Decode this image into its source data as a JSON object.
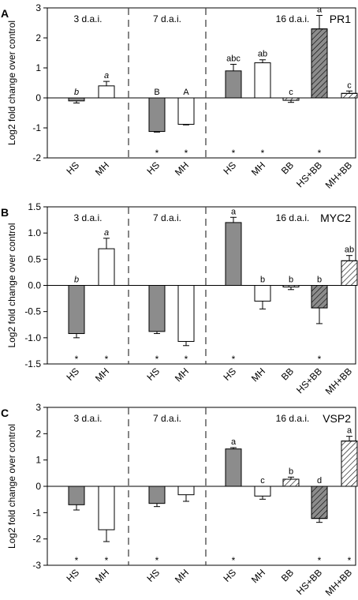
{
  "chart_data": [
    {
      "type": "bar",
      "panel": "A",
      "gene": "PR1",
      "ylabel": "Log2 fold change over control",
      "ylim": [
        -2,
        3
      ],
      "yticks": [
        -2,
        -1,
        0,
        1,
        2,
        3
      ],
      "groups": [
        {
          "label": "3 d.a.i.",
          "categories": [
            "HS",
            "MH"
          ],
          "values": [
            -0.1,
            0.4
          ],
          "errors": [
            0.07,
            0.15
          ],
          "letters": [
            "b",
            "a"
          ],
          "italic_letters": true,
          "stars": [
            "",
            ""
          ]
        },
        {
          "label": "7 d.a.i.",
          "categories": [
            "HS",
            "MH"
          ],
          "values": [
            -1.12,
            -0.88
          ],
          "errors": [
            0.02,
            0.02
          ],
          "letters": [
            "B",
            "A"
          ],
          "italic_letters": false,
          "stars": [
            "*",
            "*"
          ]
        },
        {
          "label": "16 d.a.i.",
          "categories": [
            "HS",
            "MH",
            "BB",
            "HS+BB",
            "MH+BB"
          ],
          "values": [
            0.9,
            1.17,
            -0.08,
            2.3,
            0.15
          ],
          "errors": [
            0.22,
            0.1,
            0.07,
            0.45,
            0.08
          ],
          "letters": [
            "abc",
            "ab",
            "c",
            "a",
            "c"
          ],
          "italic_letters": false,
          "stars": [
            "*",
            "*",
            "",
            "*",
            ""
          ]
        }
      ]
    },
    {
      "type": "bar",
      "panel": "B",
      "gene": "MYC2",
      "ylabel": "Log2 fold change over control",
      "ylim": [
        -1.5,
        1.5
      ],
      "yticks": [
        -1.5,
        -1.0,
        -0.5,
        0.0,
        0.5,
        1.0,
        1.5
      ],
      "groups": [
        {
          "label": "3 d.a.i.",
          "categories": [
            "HS",
            "MH"
          ],
          "values": [
            -0.92,
            0.7
          ],
          "errors": [
            0.08,
            0.2
          ],
          "letters": [
            "b",
            "a"
          ],
          "italic_letters": true,
          "stars": [
            "*",
            "*"
          ]
        },
        {
          "label": "7 d.a.i.",
          "categories": [
            "HS",
            "MH"
          ],
          "values": [
            -0.88,
            -1.07
          ],
          "errors": [
            0.04,
            0.08
          ],
          "letters": [
            "",
            ""
          ],
          "italic_letters": false,
          "stars": [
            "*",
            "*"
          ]
        },
        {
          "label": "16 d.a.i.",
          "categories": [
            "HS",
            "MH",
            "BB",
            "HS+BB",
            "MH+BB"
          ],
          "values": [
            1.2,
            -0.3,
            -0.03,
            -0.43,
            0.47
          ],
          "errors": [
            0.1,
            0.15,
            0.05,
            0.3,
            0.1
          ],
          "letters": [
            "a",
            "b",
            "b",
            "b",
            "ab"
          ],
          "italic_letters": false,
          "stars": [
            "*",
            "",
            "",
            "*",
            ""
          ]
        }
      ]
    },
    {
      "type": "bar",
      "panel": "C",
      "gene": "VSP2",
      "ylabel": "Log2 fold change over control",
      "ylim": [
        -3,
        3
      ],
      "yticks": [
        -3,
        -2,
        -1,
        0,
        1,
        2,
        3
      ],
      "groups": [
        {
          "label": "3 d.a.i.",
          "categories": [
            "HS",
            "MH"
          ],
          "values": [
            -0.7,
            -1.65
          ],
          "errors": [
            0.2,
            0.45
          ],
          "letters": [
            "",
            ""
          ],
          "italic_letters": false,
          "stars": [
            "*",
            "*"
          ]
        },
        {
          "label": "7 d.a.i.",
          "categories": [
            "HS",
            "MH"
          ],
          "values": [
            -0.65,
            -0.32
          ],
          "errors": [
            0.12,
            0.25
          ],
          "letters": [
            "",
            ""
          ],
          "italic_letters": false,
          "stars": [
            "*",
            ""
          ]
        },
        {
          "label": "16 d.a.i.",
          "categories": [
            "HS",
            "MH",
            "BB",
            "HS+BB",
            "MH+BB"
          ],
          "values": [
            1.42,
            -0.37,
            0.27,
            -1.22,
            1.72
          ],
          "errors": [
            0.05,
            0.12,
            0.08,
            0.15,
            0.18
          ],
          "letters": [
            "a",
            "c",
            "b",
            "d",
            "a"
          ],
          "italic_letters": false,
          "stars": [
            "*",
            "",
            "",
            "*",
            "*"
          ]
        }
      ]
    }
  ],
  "bar_styles": {
    "HS": {
      "fill": "#8c8c8c",
      "hatch": false
    },
    "MH": {
      "fill": "#ffffff",
      "hatch": false
    },
    "BB": {
      "fill": "#ffffff",
      "hatch": true
    },
    "HS+BB": {
      "fill": "#8c8c8c",
      "hatch": true
    },
    "MH+BB": {
      "fill": "#ffffff",
      "hatch": true
    }
  }
}
